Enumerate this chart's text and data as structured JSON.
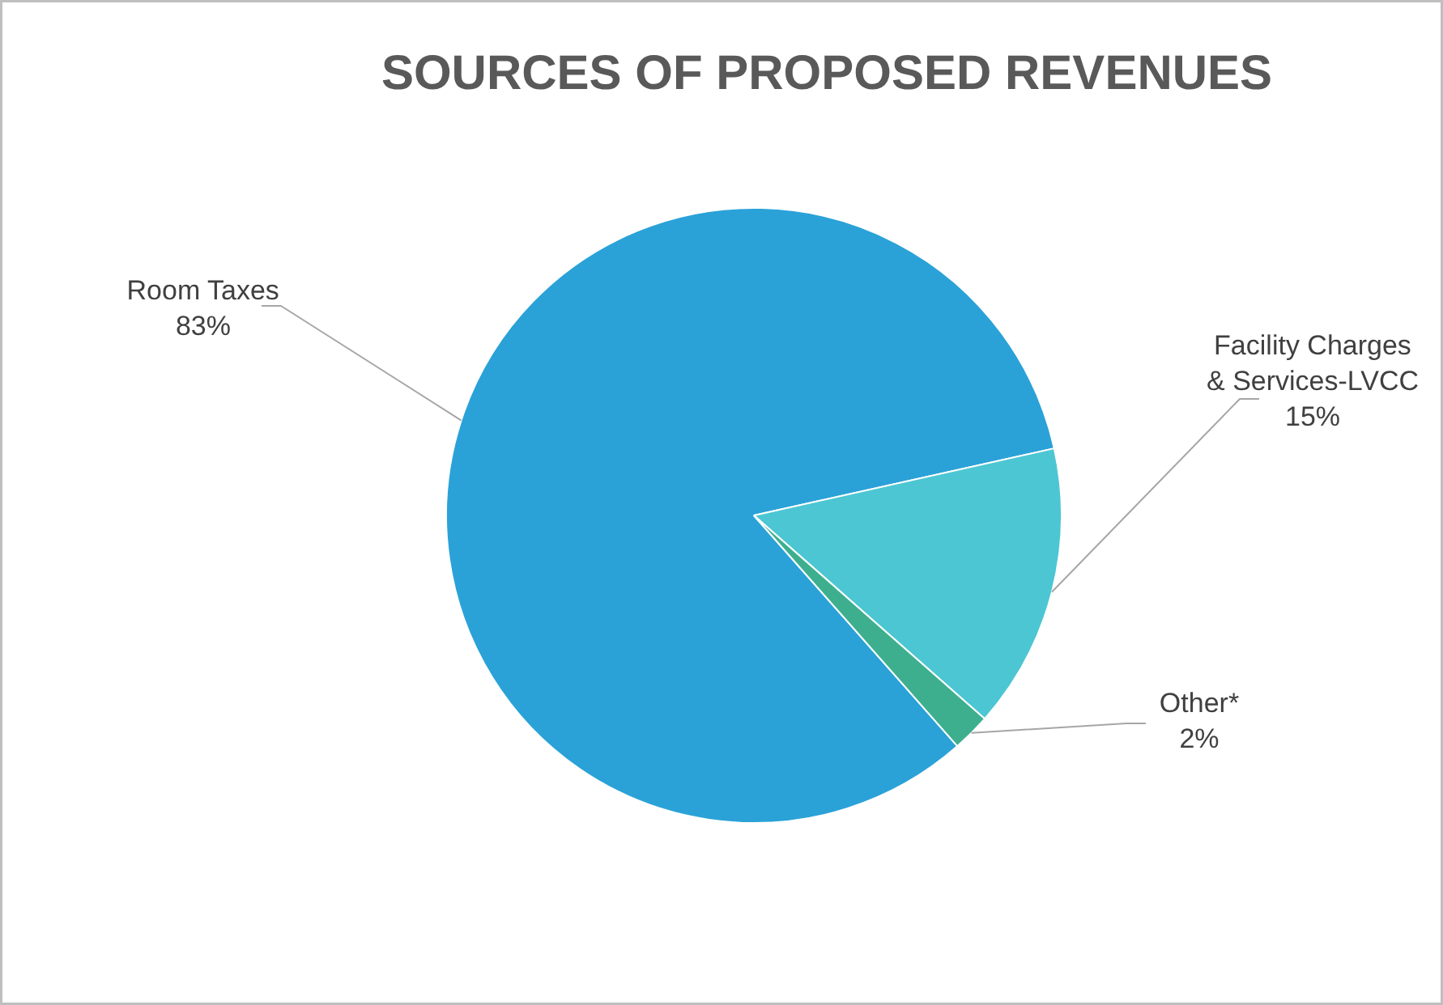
{
  "chart_data": {
    "type": "pie",
    "title": "SOURCES OF PROPOSED REVENUES",
    "categories": [
      "Room Taxes",
      "Facility Charges & Services-LVCC",
      "Other*"
    ],
    "values": [
      83,
      15,
      2
    ],
    "colors": [
      "#2aa2d8",
      "#4cc6d3",
      "#3daf8f"
    ],
    "value_labels": [
      "83%",
      "15%",
      "2%"
    ]
  }
}
